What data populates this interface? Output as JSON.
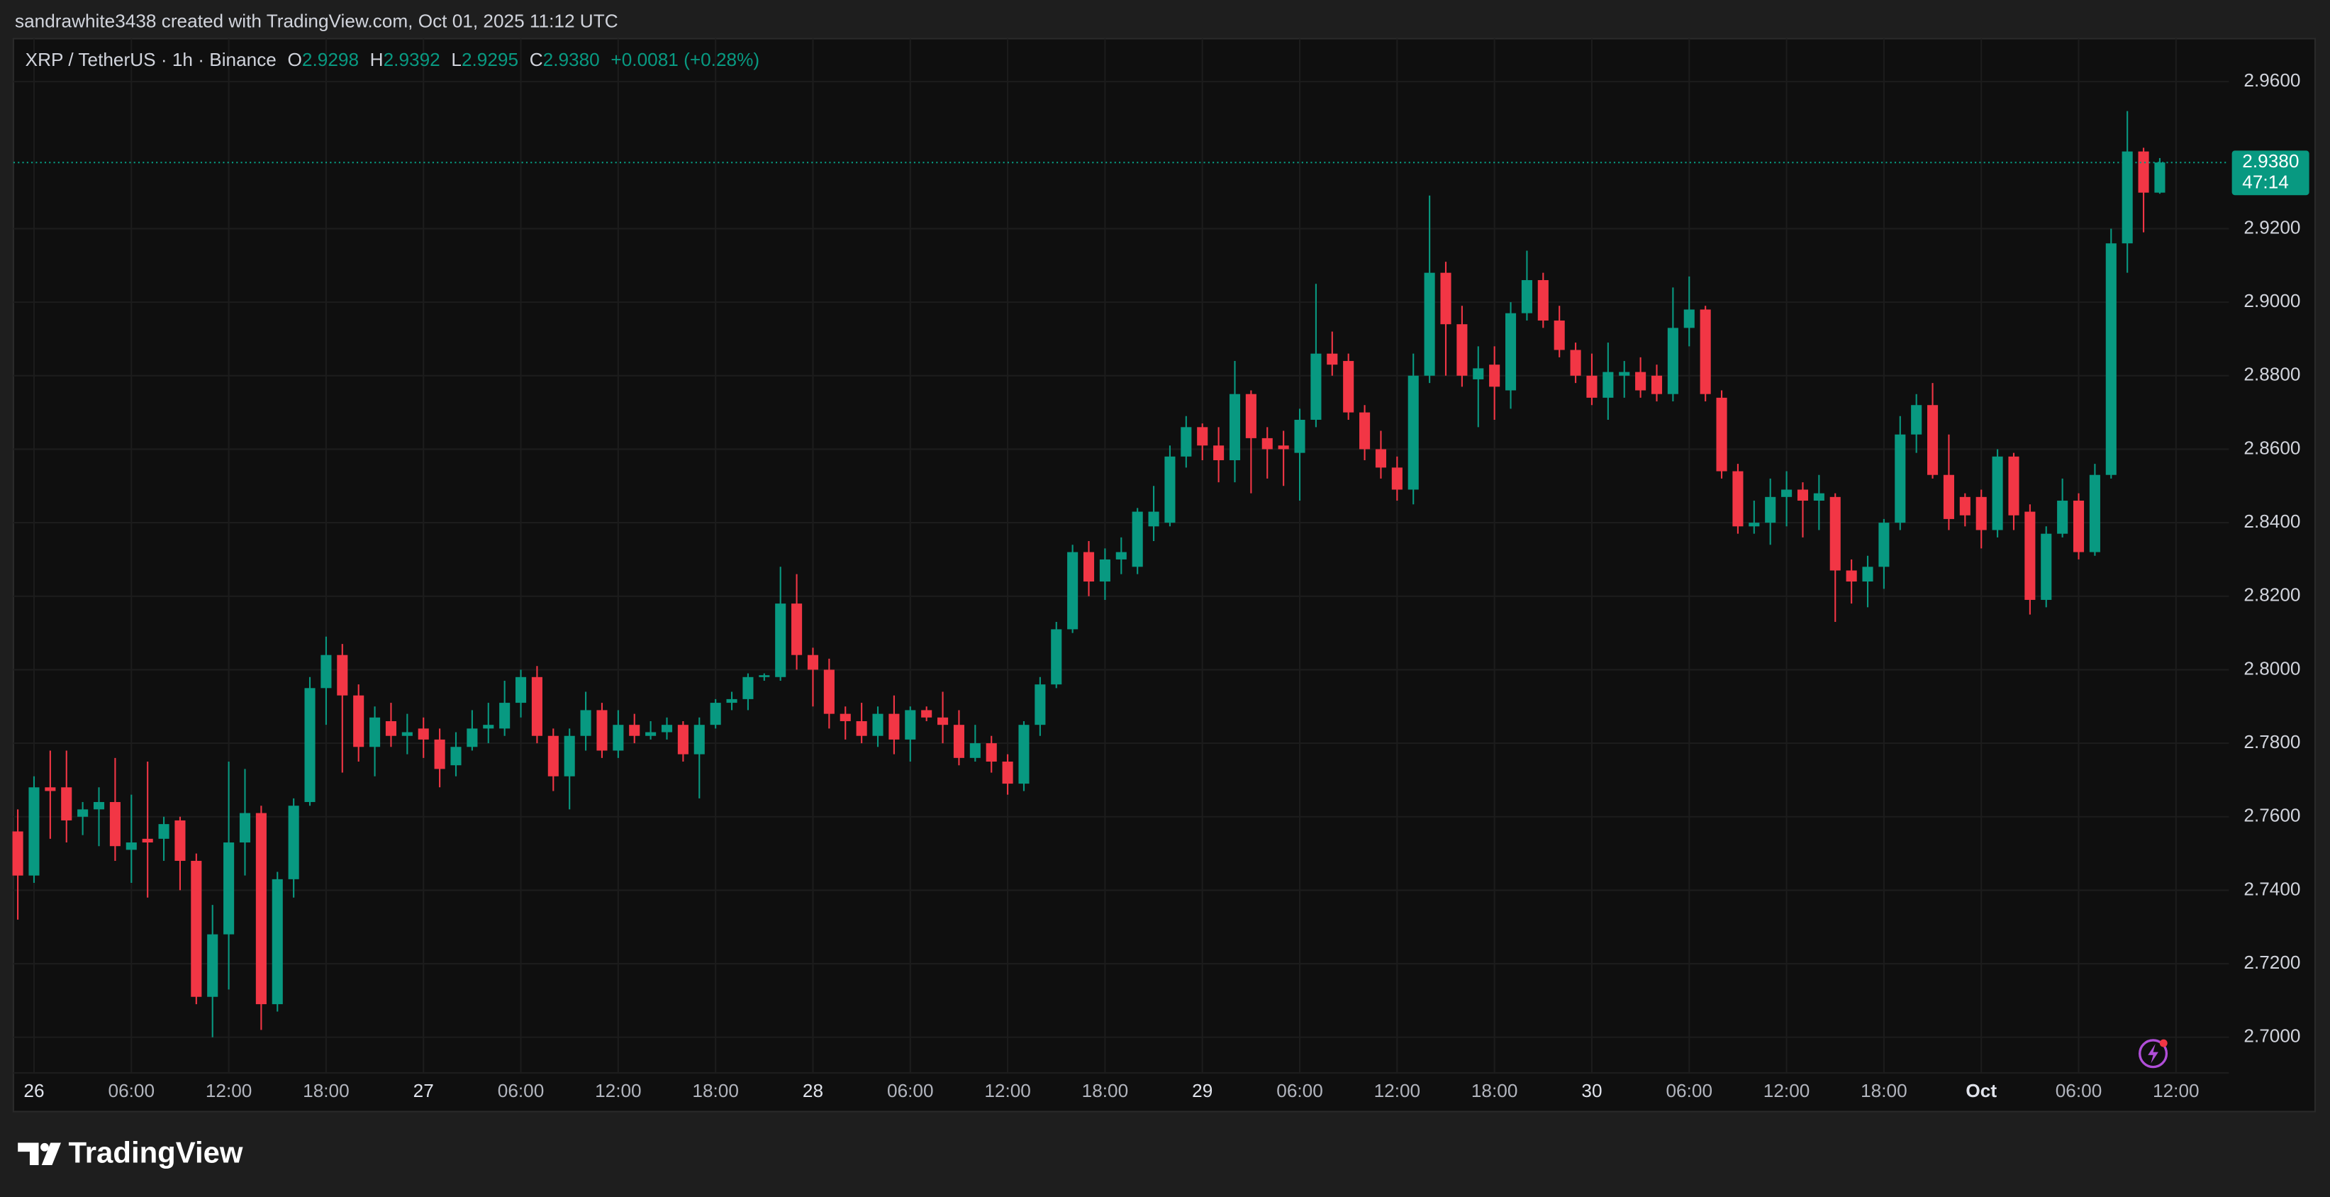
{
  "header": "sandrawhite3438 created with TradingView.com, Oct 01, 2025 11:12 UTC",
  "chart_data": {
    "type": "candlestick",
    "legend": {
      "symbol": "XRP / TetherUS · 1h · Binance",
      "items": [
        {
          "label": "O",
          "value": "2.9298"
        },
        {
          "label": "H",
          "value": "2.9392"
        },
        {
          "label": "L",
          "value": "2.9295"
        },
        {
          "label": "C",
          "value": "2.9380"
        }
      ],
      "change": "+0.0081 (+0.28%)"
    },
    "up_color": "#089981",
    "down_color": "#f23645",
    "grid": true,
    "open": [
      2.756,
      2.744,
      2.768,
      2.768,
      2.76,
      2.762,
      2.764,
      2.751,
      2.754,
      2.754,
      2.759,
      2.748,
      2.711,
      2.728,
      2.753,
      2.761,
      2.709,
      2.743,
      2.764,
      2.795,
      2.804,
      2.793,
      2.779,
      2.786,
      2.782,
      2.784,
      2.781,
      2.774,
      2.779,
      2.784,
      2.784,
      2.791,
      2.798,
      2.782,
      2.771,
      2.782,
      2.789,
      2.778,
      2.785,
      2.782,
      2.783,
      2.785,
      2.777,
      2.785,
      2.791,
      2.792,
      2.798,
      2.798,
      2.818,
      2.804,
      2.8,
      2.788,
      2.786,
      2.782,
      2.788,
      2.781,
      2.789,
      2.787,
      2.785,
      2.776,
      2.78,
      2.775,
      2.769,
      2.785,
      2.796,
      2.811,
      2.832,
      2.824,
      2.83,
      2.828,
      2.839,
      2.84,
      2.858,
      2.866,
      2.861,
      2.857,
      2.875,
      2.863,
      2.861,
      2.859,
      2.868,
      2.886,
      2.884,
      2.87,
      2.86,
      2.855,
      2.849,
      2.88,
      2.908,
      2.894,
      2.879,
      2.883,
      2.876,
      2.897,
      2.906,
      2.895,
      2.887,
      2.88,
      2.874,
      2.88,
      2.881,
      2.88,
      2.875,
      2.893,
      2.898,
      2.874,
      2.854,
      2.839,
      2.84,
      2.847,
      2.849,
      2.846,
      2.847,
      2.827,
      2.824,
      2.828,
      2.84,
      2.864,
      2.872,
      2.853,
      2.847,
      2.847,
      2.838,
      2.858,
      2.843,
      2.819,
      2.837,
      2.846,
      2.832,
      2.853,
      2.916,
      2.941,
      2.9298
    ],
    "high": [
      2.762,
      2.771,
      2.778,
      2.778,
      2.764,
      2.768,
      2.776,
      2.766,
      2.775,
      2.76,
      2.76,
      2.75,
      2.736,
      2.775,
      2.773,
      2.763,
      2.745,
      2.765,
      2.798,
      2.809,
      2.807,
      2.796,
      2.79,
      2.791,
      2.788,
      2.787,
      2.784,
      2.783,
      2.789,
      2.791,
      2.797,
      2.8,
      2.801,
      2.784,
      2.784,
      2.794,
      2.791,
      2.789,
      2.788,
      2.786,
      2.787,
      2.786,
      2.787,
      2.792,
      2.794,
      2.799,
      2.799,
      2.828,
      2.826,
      2.806,
      2.803,
      2.79,
      2.791,
      2.79,
      2.793,
      2.79,
      2.79,
      2.794,
      2.789,
      2.785,
      2.782,
      2.777,
      2.786,
      2.798,
      2.813,
      2.834,
      2.835,
      2.833,
      2.836,
      2.844,
      2.85,
      2.861,
      2.869,
      2.867,
      2.866,
      2.884,
      2.876,
      2.866,
      2.865,
      2.871,
      2.905,
      2.892,
      2.886,
      2.872,
      2.865,
      2.858,
      2.886,
      2.929,
      2.911,
      2.899,
      2.888,
      2.888,
      2.9,
      2.914,
      2.908,
      2.899,
      2.889,
      2.886,
      2.889,
      2.884,
      2.885,
      2.883,
      2.904,
      2.907,
      2.899,
      2.876,
      2.856,
      2.846,
      2.852,
      2.854,
      2.851,
      2.853,
      2.848,
      2.83,
      2.831,
      2.841,
      2.869,
      2.875,
      2.878,
      2.864,
      2.848,
      2.849,
      2.86,
      2.859,
      2.845,
      2.839,
      2.852,
      2.848,
      2.856,
      2.92,
      2.952,
      2.942,
      2.9392
    ],
    "low": [
      2.732,
      2.742,
      2.754,
      2.753,
      2.755,
      2.752,
      2.748,
      2.742,
      2.738,
      2.748,
      2.74,
      2.709,
      2.7,
      2.713,
      2.744,
      2.702,
      2.707,
      2.738,
      2.763,
      2.785,
      2.772,
      2.775,
      2.771,
      2.779,
      2.777,
      2.776,
      2.768,
      2.771,
      2.778,
      2.78,
      2.782,
      2.787,
      2.78,
      2.767,
      2.762,
      2.778,
      2.776,
      2.776,
      2.78,
      2.781,
      2.781,
      2.775,
      2.765,
      2.784,
      2.789,
      2.789,
      2.797,
      2.797,
      2.8,
      2.79,
      2.784,
      2.781,
      2.78,
      2.779,
      2.777,
      2.775,
      2.786,
      2.78,
      2.774,
      2.775,
      2.772,
      2.766,
      2.767,
      2.782,
      2.795,
      2.81,
      2.82,
      2.819,
      2.826,
      2.826,
      2.835,
      2.839,
      2.855,
      2.857,
      2.851,
      2.851,
      2.848,
      2.852,
      2.85,
      2.846,
      2.866,
      2.88,
      2.868,
      2.857,
      2.852,
      2.846,
      2.845,
      2.878,
      2.88,
      2.877,
      2.866,
      2.868,
      2.871,
      2.895,
      2.893,
      2.885,
      2.878,
      2.872,
      2.868,
      2.874,
      2.874,
      2.873,
      2.873,
      2.888,
      2.873,
      2.852,
      2.837,
      2.837,
      2.834,
      2.839,
      2.836,
      2.838,
      2.813,
      2.818,
      2.817,
      2.822,
      2.838,
      2.859,
      2.852,
      2.838,
      2.839,
      2.833,
      2.836,
      2.838,
      2.815,
      2.817,
      2.836,
      2.83,
      2.831,
      2.852,
      2.908,
      2.919,
      2.9295
    ],
    "close": [
      2.744,
      2.768,
      2.767,
      2.759,
      2.762,
      2.764,
      2.752,
      2.753,
      2.753,
      2.758,
      2.748,
      2.711,
      2.728,
      2.753,
      2.761,
      2.709,
      2.743,
      2.763,
      2.795,
      2.804,
      2.793,
      2.779,
      2.787,
      2.782,
      2.783,
      2.781,
      2.773,
      2.779,
      2.784,
      2.785,
      2.791,
      2.798,
      2.782,
      2.771,
      2.782,
      2.789,
      2.778,
      2.785,
      2.782,
      2.783,
      2.785,
      2.777,
      2.785,
      2.791,
      2.792,
      2.798,
      2.7985,
      2.818,
      2.804,
      2.8,
      2.788,
      2.786,
      2.782,
      2.788,
      2.781,
      2.789,
      2.787,
      2.785,
      2.776,
      2.78,
      2.775,
      2.769,
      2.785,
      2.796,
      2.811,
      2.832,
      2.824,
      2.83,
      2.832,
      2.843,
      2.843,
      2.858,
      2.866,
      2.861,
      2.857,
      2.875,
      2.863,
      2.86,
      2.86,
      2.868,
      2.886,
      2.883,
      2.87,
      2.86,
      2.855,
      2.849,
      2.88,
      2.908,
      2.894,
      2.88,
      2.882,
      2.877,
      2.897,
      2.906,
      2.895,
      2.887,
      2.88,
      2.874,
      2.881,
      2.881,
      2.876,
      2.875,
      2.893,
      2.898,
      2.875,
      2.854,
      2.839,
      2.84,
      2.847,
      2.849,
      2.846,
      2.848,
      2.827,
      2.824,
      2.828,
      2.84,
      2.864,
      2.872,
      2.853,
      2.841,
      2.842,
      2.838,
      2.858,
      2.842,
      2.819,
      2.837,
      2.846,
      2.832,
      2.853,
      2.916,
      2.941,
      2.9298,
      2.938
    ],
    "ylim": [
      2.6903,
      2.9717
    ],
    "yticks": [
      {
        "value": 2.7,
        "label": "2.7000"
      },
      {
        "value": 2.72,
        "label": "2.7200"
      },
      {
        "value": 2.74,
        "label": "2.7400"
      },
      {
        "value": 2.76,
        "label": "2.7600"
      },
      {
        "value": 2.78,
        "label": "2.7800"
      },
      {
        "value": 2.8,
        "label": "2.8000"
      },
      {
        "value": 2.82,
        "label": "2.8200"
      },
      {
        "value": 2.84,
        "label": "2.8400"
      },
      {
        "value": 2.86,
        "label": "2.8600"
      },
      {
        "value": 2.88,
        "label": "2.8800"
      },
      {
        "value": 2.9,
        "label": "2.9000"
      },
      {
        "value": 2.92,
        "label": "2.9200"
      },
      {
        "value": 2.96,
        "label": "2.9600"
      }
    ],
    "xlim": [
      -0.27,
      136.26
    ],
    "xticks": [
      {
        "value": 1,
        "label": "26"
      },
      {
        "value": 7,
        "label": "06:00"
      },
      {
        "value": 13,
        "label": "12:00"
      },
      {
        "value": 19,
        "label": "18:00"
      },
      {
        "value": 25,
        "label": "27"
      },
      {
        "value": 31,
        "label": "06:00"
      },
      {
        "value": 37,
        "label": "12:00"
      },
      {
        "value": 43,
        "label": "18:00"
      },
      {
        "value": 49,
        "label": "28"
      },
      {
        "value": 55,
        "label": "06:00"
      },
      {
        "value": 61,
        "label": "12:00"
      },
      {
        "value": 67,
        "label": "18:00"
      },
      {
        "value": 73,
        "label": "29"
      },
      {
        "value": 79,
        "label": "06:00"
      },
      {
        "value": 85,
        "label": "12:00"
      },
      {
        "value": 91,
        "label": "18:00"
      },
      {
        "value": 97,
        "label": "30"
      },
      {
        "value": 103,
        "label": "06:00"
      },
      {
        "value": 109,
        "label": "12:00"
      },
      {
        "value": 115,
        "label": "18:00"
      },
      {
        "value": 121,
        "label": "Oct"
      },
      {
        "value": 127,
        "label": "06:00"
      },
      {
        "value": 133,
        "label": "12:00"
      }
    ],
    "last_price_label": "2.9380",
    "countdown": "47:14"
  },
  "footer": {
    "brand": "TradingView"
  }
}
